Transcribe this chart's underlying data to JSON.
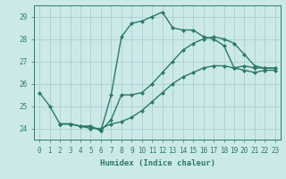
{
  "xlabel": "Humidex (Indice chaleur)",
  "xlim": [
    -0.5,
    23.5
  ],
  "ylim": [
    23.5,
    29.5
  ],
  "yticks": [
    24,
    25,
    26,
    27,
    28,
    29
  ],
  "xticks": [
    0,
    1,
    2,
    3,
    4,
    5,
    6,
    7,
    8,
    9,
    10,
    11,
    12,
    13,
    14,
    15,
    16,
    17,
    18,
    19,
    20,
    21,
    22,
    23
  ],
  "background_color": "#cce9e9",
  "grid_color": "#aacfcf",
  "line_color": "#2a7a6a",
  "line1_x": [
    0,
    1,
    2,
    3,
    4,
    5,
    6,
    7,
    8,
    9,
    10,
    11,
    12,
    13,
    14,
    15,
    16,
    17,
    18,
    19,
    20,
    21,
    22,
    23
  ],
  "line1_y": [
    25.6,
    25.0,
    24.2,
    24.2,
    24.1,
    24.1,
    23.9,
    25.5,
    28.1,
    28.7,
    28.8,
    29.0,
    29.2,
    28.5,
    28.4,
    28.4,
    28.1,
    28.0,
    27.7,
    26.7,
    26.8,
    26.7,
    26.7,
    26.7
  ],
  "line2_x": [
    2,
    3,
    4,
    5,
    6,
    7,
    8,
    9,
    10,
    11,
    12,
    13,
    14,
    15,
    16,
    17,
    18,
    19,
    20,
    21,
    22,
    23
  ],
  "line2_y": [
    24.2,
    24.2,
    24.1,
    24.1,
    23.9,
    24.4,
    25.5,
    25.5,
    25.6,
    26.0,
    26.5,
    27.0,
    27.5,
    27.8,
    28.0,
    28.1,
    28.0,
    27.8,
    27.3,
    26.8,
    26.7,
    26.7
  ],
  "line3_x": [
    2,
    3,
    4,
    5,
    6,
    7,
    8,
    9,
    10,
    11,
    12,
    13,
    14,
    15,
    16,
    17,
    18,
    19,
    20,
    21,
    22,
    23
  ],
  "line3_y": [
    24.2,
    24.2,
    24.1,
    24.0,
    24.0,
    24.2,
    24.3,
    24.5,
    24.8,
    25.2,
    25.6,
    26.0,
    26.3,
    26.5,
    26.7,
    26.8,
    26.8,
    26.7,
    26.6,
    26.5,
    26.6,
    26.6
  ],
  "markersize": 2.5,
  "linewidth": 1.0
}
